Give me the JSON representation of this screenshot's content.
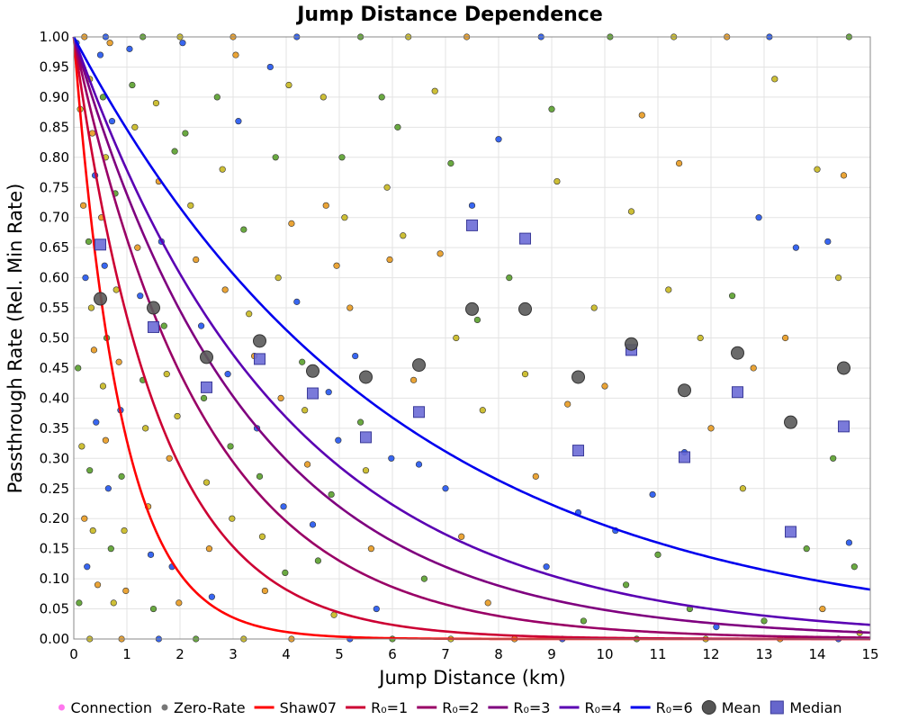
{
  "chart_data": {
    "type": "scatter",
    "title": "Jump Distance Dependence",
    "xlabel": "Jump Distance (km)",
    "ylabel": "Passthrough Rate (Rel. Min Rate)",
    "xlim": [
      0,
      15
    ],
    "ylim": [
      0,
      1
    ],
    "x_ticks": [
      "0",
      "1",
      "2",
      "3",
      "4",
      "5",
      "6",
      "7",
      "8",
      "9",
      "10",
      "11",
      "12",
      "13",
      "14",
      "15"
    ],
    "y_ticks": [
      "0.00",
      "0.05",
      "0.10",
      "0.15",
      "0.20",
      "0.25",
      "0.30",
      "0.35",
      "0.40",
      "0.45",
      "0.50",
      "0.55",
      "0.60",
      "0.65",
      "0.70",
      "0.75",
      "0.80",
      "0.85",
      "0.90",
      "0.95",
      "1.00"
    ],
    "grid": true,
    "curves": [
      {
        "name": "Shaw07",
        "color": "#ff0000",
        "decay_km": 0.9
      },
      {
        "name": "R₀=1",
        "color": "#cc0033",
        "decay_km": 1.6
      },
      {
        "name": "R₀=2",
        "color": "#990066",
        "decay_km": 2.45
      },
      {
        "name": "R₀=3",
        "color": "#7f007f",
        "decay_km": 3.3
      },
      {
        "name": "R₀=4",
        "color": "#5a00b3",
        "decay_km": 4.0
      },
      {
        "name": "R₀=6",
        "color": "#0000ee",
        "decay_km": 6.0
      }
    ],
    "mean": {
      "name": "Mean",
      "x": [
        0.5,
        1.5,
        2.5,
        3.5,
        4.5,
        5.5,
        6.5,
        7.5,
        8.5,
        9.5,
        10.5,
        11.5,
        12.5,
        13.5,
        14.5
      ],
      "y": [
        0.565,
        0.55,
        0.468,
        0.495,
        0.445,
        0.435,
        0.455,
        0.548,
        0.548,
        0.435,
        0.49,
        0.413,
        0.475,
        0.36,
        0.45
      ]
    },
    "median": {
      "name": "Median",
      "x": [
        0.5,
        1.5,
        2.5,
        3.5,
        4.5,
        5.5,
        6.5,
        7.5,
        8.5,
        9.5,
        10.5,
        11.5,
        12.5,
        13.5,
        14.5
      ],
      "y": [
        0.655,
        0.518,
        0.418,
        0.465,
        0.408,
        0.335,
        0.377,
        0.687,
        0.665,
        0.313,
        0.48,
        0.302,
        0.41,
        0.178,
        0.353
      ]
    },
    "scatter_points": [
      [
        0.05,
        0.99
      ],
      [
        0.1,
        0.95
      ],
      [
        0.12,
        0.88
      ],
      [
        0.18,
        0.72
      ],
      [
        0.22,
        0.6
      ],
      [
        0.08,
        0.45
      ],
      [
        0.15,
        0.32
      ],
      [
        0.2,
        0.2
      ],
      [
        0.25,
        0.12
      ],
      [
        0.1,
        0.06
      ],
      [
        0.3,
        0.93
      ],
      [
        0.35,
        0.84
      ],
      [
        0.4,
        0.77
      ],
      [
        0.28,
        0.66
      ],
      [
        0.33,
        0.55
      ],
      [
        0.38,
        0.48
      ],
      [
        0.42,
        0.36
      ],
      [
        0.3,
        0.28
      ],
      [
        0.36,
        0.18
      ],
      [
        0.45,
        0.09
      ],
      [
        0.5,
        0.97
      ],
      [
        0.55,
        0.9
      ],
      [
        0.6,
        0.8
      ],
      [
        0.52,
        0.7
      ],
      [
        0.58,
        0.62
      ],
      [
        0.62,
        0.5
      ],
      [
        0.55,
        0.42
      ],
      [
        0.6,
        0.33
      ],
      [
        0.65,
        0.25
      ],
      [
        0.7,
        0.15
      ],
      [
        0.75,
        0.06
      ],
      [
        0.68,
        0.99
      ],
      [
        0.72,
        0.86
      ],
      [
        0.78,
        0.74
      ],
      [
        0.8,
        0.58
      ],
      [
        0.85,
        0.46
      ],
      [
        0.88,
        0.38
      ],
      [
        0.9,
        0.27
      ],
      [
        0.95,
        0.18
      ],
      [
        0.98,
        0.08
      ],
      [
        1.05,
        0.98
      ],
      [
        1.1,
        0.92
      ],
      [
        1.15,
        0.85
      ],
      [
        1.2,
        0.65
      ],
      [
        1.25,
        0.57
      ],
      [
        1.3,
        0.43
      ],
      [
        1.35,
        0.35
      ],
      [
        1.4,
        0.22
      ],
      [
        1.45,
        0.14
      ],
      [
        1.5,
        0.05
      ],
      [
        1.55,
        0.89
      ],
      [
        1.6,
        0.76
      ],
      [
        1.65,
        0.66
      ],
      [
        1.7,
        0.52
      ],
      [
        1.75,
        0.44
      ],
      [
        1.8,
        0.3
      ],
      [
        1.85,
        0.12
      ],
      [
        1.9,
        0.81
      ],
      [
        1.95,
        0.37
      ],
      [
        1.98,
        0.06
      ],
      [
        2.05,
        0.99
      ],
      [
        2.1,
        0.84
      ],
      [
        2.2,
        0.72
      ],
      [
        2.3,
        0.63
      ],
      [
        2.4,
        0.52
      ],
      [
        2.45,
        0.4
      ],
      [
        2.5,
        0.26
      ],
      [
        2.55,
        0.15
      ],
      [
        2.6,
        0.07
      ],
      [
        2.7,
        0.9
      ],
      [
        2.8,
        0.78
      ],
      [
        2.85,
        0.58
      ],
      [
        2.9,
        0.44
      ],
      [
        2.95,
        0.32
      ],
      [
        2.98,
        0.2
      ],
      [
        3.05,
        0.97
      ],
      [
        3.1,
        0.86
      ],
      [
        3.2,
        0.68
      ],
      [
        3.3,
        0.54
      ],
      [
        3.4,
        0.47
      ],
      [
        3.45,
        0.35
      ],
      [
        3.5,
        0.27
      ],
      [
        3.55,
        0.17
      ],
      [
        3.6,
        0.08
      ],
      [
        3.7,
        0.95
      ],
      [
        3.8,
        0.8
      ],
      [
        3.85,
        0.6
      ],
      [
        3.9,
        0.4
      ],
      [
        3.95,
        0.22
      ],
      [
        3.98,
        0.11
      ],
      [
        4.05,
        0.92
      ],
      [
        4.1,
        0.69
      ],
      [
        4.2,
        0.56
      ],
      [
        4.3,
        0.46
      ],
      [
        4.35,
        0.38
      ],
      [
        4.4,
        0.29
      ],
      [
        4.5,
        0.19
      ],
      [
        4.6,
        0.13
      ],
      [
        4.7,
        0.9
      ],
      [
        4.75,
        0.72
      ],
      [
        4.8,
        0.41
      ],
      [
        4.85,
        0.24
      ],
      [
        4.9,
        0.04
      ],
      [
        4.95,
        0.62
      ],
      [
        4.98,
        0.33
      ],
      [
        5.05,
        0.8
      ],
      [
        5.1,
        0.7
      ],
      [
        5.2,
        0.55
      ],
      [
        5.3,
        0.47
      ],
      [
        5.4,
        0.36
      ],
      [
        5.5,
        0.28
      ],
      [
        5.6,
        0.15
      ],
      [
        5.7,
        0.05
      ],
      [
        5.8,
        0.9
      ],
      [
        5.9,
        0.75
      ],
      [
        5.95,
        0.63
      ],
      [
        5.98,
        0.3
      ],
      [
        6.1,
        0.85
      ],
      [
        6.2,
        0.67
      ],
      [
        6.4,
        0.43
      ],
      [
        6.5,
        0.29
      ],
      [
        6.6,
        0.1
      ],
      [
        6.8,
        0.91
      ],
      [
        6.9,
        0.64
      ],
      [
        7.0,
        0.25
      ],
      [
        7.1,
        0.79
      ],
      [
        7.2,
        0.5
      ],
      [
        7.3,
        0.17
      ],
      [
        7.5,
        0.72
      ],
      [
        7.6,
        0.53
      ],
      [
        7.7,
        0.38
      ],
      [
        7.8,
        0.06
      ],
      [
        8.0,
        0.83
      ],
      [
        8.2,
        0.6
      ],
      [
        8.5,
        0.44
      ],
      [
        8.7,
        0.27
      ],
      [
        8.9,
        0.12
      ],
      [
        9.0,
        0.88
      ],
      [
        9.1,
        0.76
      ],
      [
        9.3,
        0.39
      ],
      [
        9.5,
        0.21
      ],
      [
        9.6,
        0.03
      ],
      [
        9.8,
        0.55
      ],
      [
        10.0,
        0.42
      ],
      [
        10.2,
        0.18
      ],
      [
        10.4,
        0.09
      ],
      [
        10.5,
        0.71
      ],
      [
        10.7,
        0.87
      ],
      [
        10.9,
        0.24
      ],
      [
        11.0,
        0.14
      ],
      [
        11.2,
        0.58
      ],
      [
        11.4,
        0.79
      ],
      [
        11.5,
        0.31
      ],
      [
        11.6,
        0.05
      ],
      [
        11.8,
        0.5
      ],
      [
        12.0,
        0.35
      ],
      [
        12.1,
        0.02
      ],
      [
        12.4,
        0.57
      ],
      [
        12.6,
        0.25
      ],
      [
        12.8,
        0.45
      ],
      [
        12.9,
        0.7
      ],
      [
        13.0,
        0.03
      ],
      [
        13.2,
        0.93
      ],
      [
        13.4,
        0.5
      ],
      [
        13.6,
        0.65
      ],
      [
        13.8,
        0.15
      ],
      [
        14.0,
        0.78
      ],
      [
        14.1,
        0.05
      ],
      [
        14.2,
        0.66
      ],
      [
        14.3,
        0.3
      ],
      [
        14.4,
        0.6
      ],
      [
        14.5,
        0.77
      ],
      [
        14.6,
        0.16
      ],
      [
        14.7,
        0.12
      ],
      [
        14.8,
        0.01
      ],
      [
        0.2,
        1.0
      ],
      [
        0.6,
        1.0
      ],
      [
        1.3,
        1.0
      ],
      [
        2.0,
        1.0
      ],
      [
        3.0,
        1.0
      ],
      [
        4.2,
        1.0
      ],
      [
        5.4,
        1.0
      ],
      [
        6.3,
        1.0
      ],
      [
        7.4,
        1.0
      ],
      [
        8.8,
        1.0
      ],
      [
        10.1,
        1.0
      ],
      [
        11.3,
        1.0
      ],
      [
        12.3,
        1.0
      ],
      [
        13.1,
        1.0
      ],
      [
        14.6,
        1.0
      ],
      [
        0.3,
        0.0
      ],
      [
        0.9,
        0.0
      ],
      [
        1.6,
        0.0
      ],
      [
        2.3,
        0.0
      ],
      [
        3.2,
        0.0
      ],
      [
        4.1,
        0.0
      ],
      [
        5.2,
        0.0
      ],
      [
        6.0,
        0.0
      ],
      [
        7.1,
        0.0
      ],
      [
        8.3,
        0.0
      ],
      [
        9.2,
        0.0
      ],
      [
        10.6,
        0.0
      ],
      [
        11.9,
        0.0
      ],
      [
        13.3,
        0.0
      ],
      [
        14.4,
        0.0
      ]
    ],
    "point_colors": [
      "#2255ee",
      "#5aa02c",
      "#c8b820",
      "#e89a20"
    ],
    "legend": [
      {
        "label": "Connection",
        "kind": "dot-small",
        "color": "#ff77ee"
      },
      {
        "label": "Zero-Rate",
        "kind": "dot-small",
        "color": "#777777"
      },
      {
        "label": "Shaw07",
        "kind": "line",
        "color": "#ff0000"
      },
      {
        "label": "R₀=1",
        "kind": "line",
        "color": "#cc0033"
      },
      {
        "label": "R₀=2",
        "kind": "line",
        "color": "#990066"
      },
      {
        "label": "R₀=3",
        "kind": "line",
        "color": "#7f007f"
      },
      {
        "label": "R₀=4",
        "kind": "line",
        "color": "#5a00b3"
      },
      {
        "label": "R₀=6",
        "kind": "line",
        "color": "#0000ee"
      },
      {
        "label": "Mean",
        "kind": "circle",
        "color": "#555555"
      },
      {
        "label": "Median",
        "kind": "square",
        "color": "#6666cc"
      }
    ],
    "legend_position": "bottom"
  }
}
